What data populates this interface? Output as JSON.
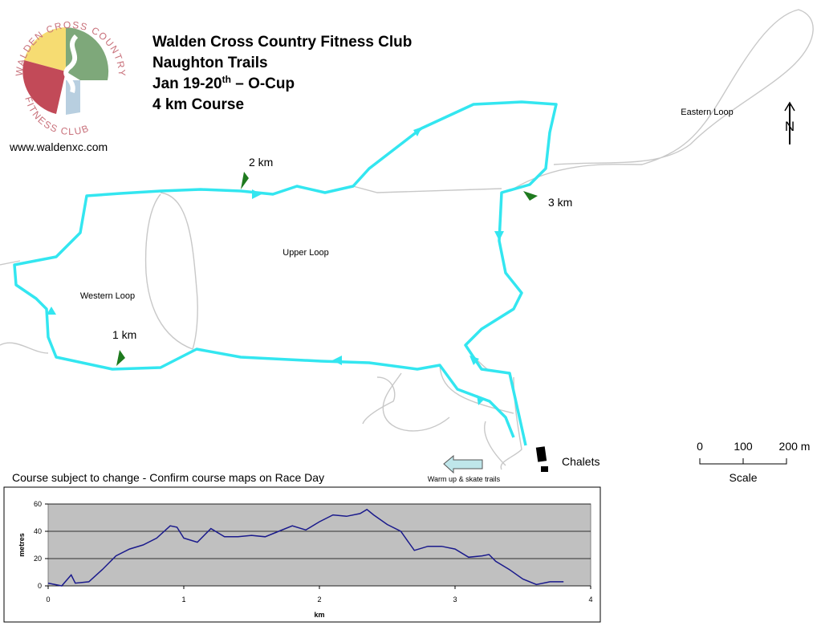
{
  "header": {
    "title_lines": [
      "Walden Cross Country Fitness Club",
      "Naughton Trails"
    ],
    "date": {
      "main": "Jan 19-20",
      "sup": "th",
      "rest": " – O-Cup"
    },
    "course": "4 km Course",
    "url": "www.waldenxc.com"
  },
  "logo": {
    "top_text": "WALDEN CROSS COUNTRY",
    "bottom_text": "FITNESS CLUB"
  },
  "map": {
    "areas": [
      "Eastern Loop",
      "Upper Loop",
      "Western Loop"
    ],
    "markers": [
      "1 km",
      "2 km",
      "3 km"
    ],
    "north": "N",
    "chalets": "Chalets",
    "warmup": "Warm up & skate trails",
    "note": "Course subject to change - Confirm course maps on Race Day",
    "scale": {
      "ticks": [
        "0",
        "100",
        "200 m"
      ],
      "label": "Scale"
    }
  },
  "chart_data": {
    "type": "line",
    "x": [
      0,
      0.1,
      0.17,
      0.2,
      0.3,
      0.4,
      0.5,
      0.6,
      0.7,
      0.8,
      0.9,
      0.95,
      1.0,
      1.1,
      1.2,
      1.3,
      1.4,
      1.5,
      1.6,
      1.7,
      1.8,
      1.9,
      2.0,
      2.1,
      2.2,
      2.3,
      2.35,
      2.4,
      2.5,
      2.6,
      2.7,
      2.8,
      2.9,
      3.0,
      3.1,
      3.2,
      3.25,
      3.3,
      3.4,
      3.5,
      3.6,
      3.7,
      3.8
    ],
    "values": [
      2,
      0,
      8,
      2,
      3,
      12,
      22,
      27,
      30,
      35,
      44,
      43,
      35,
      32,
      42,
      36,
      36,
      37,
      36,
      40,
      44,
      41,
      47,
      52,
      51,
      53,
      56,
      52,
      45,
      40,
      26,
      29,
      29,
      27,
      21,
      22,
      23,
      18,
      12,
      5,
      1,
      3,
      3
    ],
    "color": "#1a1a8c",
    "xlabel": "km",
    "ylabel": "metres",
    "xlim": [
      0,
      4
    ],
    "xticks": [
      0,
      1,
      2,
      3,
      4
    ],
    "ylim": [
      0,
      60
    ],
    "yticks": [
      0,
      20,
      40,
      60
    ],
    "grid": true
  }
}
